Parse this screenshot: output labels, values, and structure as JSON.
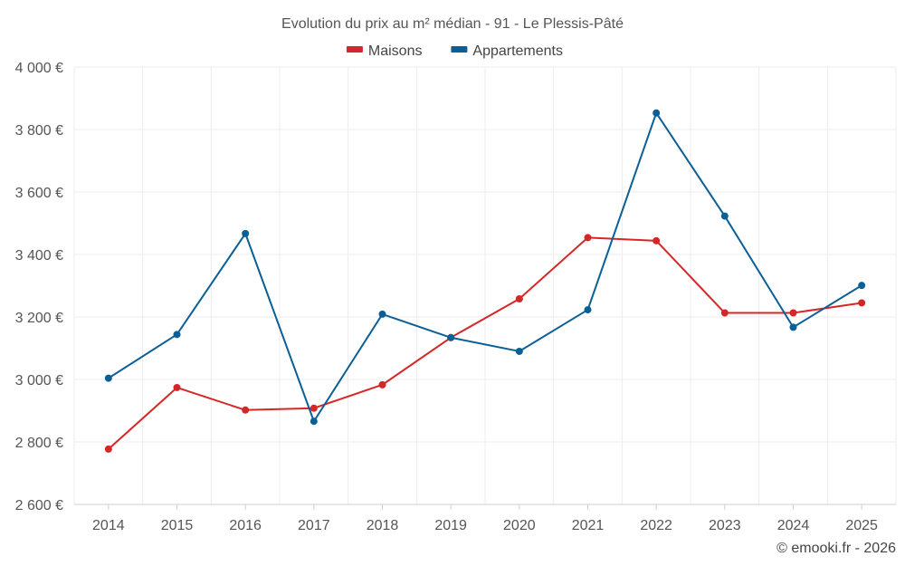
{
  "chart_data": {
    "type": "line",
    "title": "Evolution du prix au m² médian - 91 - Le Plessis-Pâté",
    "categories": [
      "2014",
      "2015",
      "2016",
      "2017",
      "2018",
      "2019",
      "2020",
      "2021",
      "2022",
      "2023",
      "2024",
      "2025"
    ],
    "series": [
      {
        "name": "Maisons",
        "color": "#d62728",
        "values": [
          2777,
          2974,
          2902,
          2908,
          2983,
          3134,
          3258,
          3454,
          3444,
          3213,
          3213,
          3245
        ]
      },
      {
        "name": "Appartements",
        "color": "#0a5f97",
        "values": [
          3004,
          3144,
          3467,
          2866,
          3209,
          3134,
          3090,
          3223,
          3853,
          3523,
          3167,
          3301
        ]
      }
    ],
    "y_ticks": [
      2600,
      2800,
      3000,
      3200,
      3400,
      3600,
      3800,
      4000
    ],
    "y_tick_labels": [
      "2 600 €",
      "2 800 €",
      "3 000 €",
      "3 200 €",
      "3 400 €",
      "3 600 €",
      "3 800 €",
      "4 000 €"
    ],
    "ylim": [
      2600,
      4000
    ],
    "xlabel": "",
    "ylabel": "",
    "grid": true,
    "legend_position": "top-center"
  },
  "credit": "© emooki.fr - 2026"
}
